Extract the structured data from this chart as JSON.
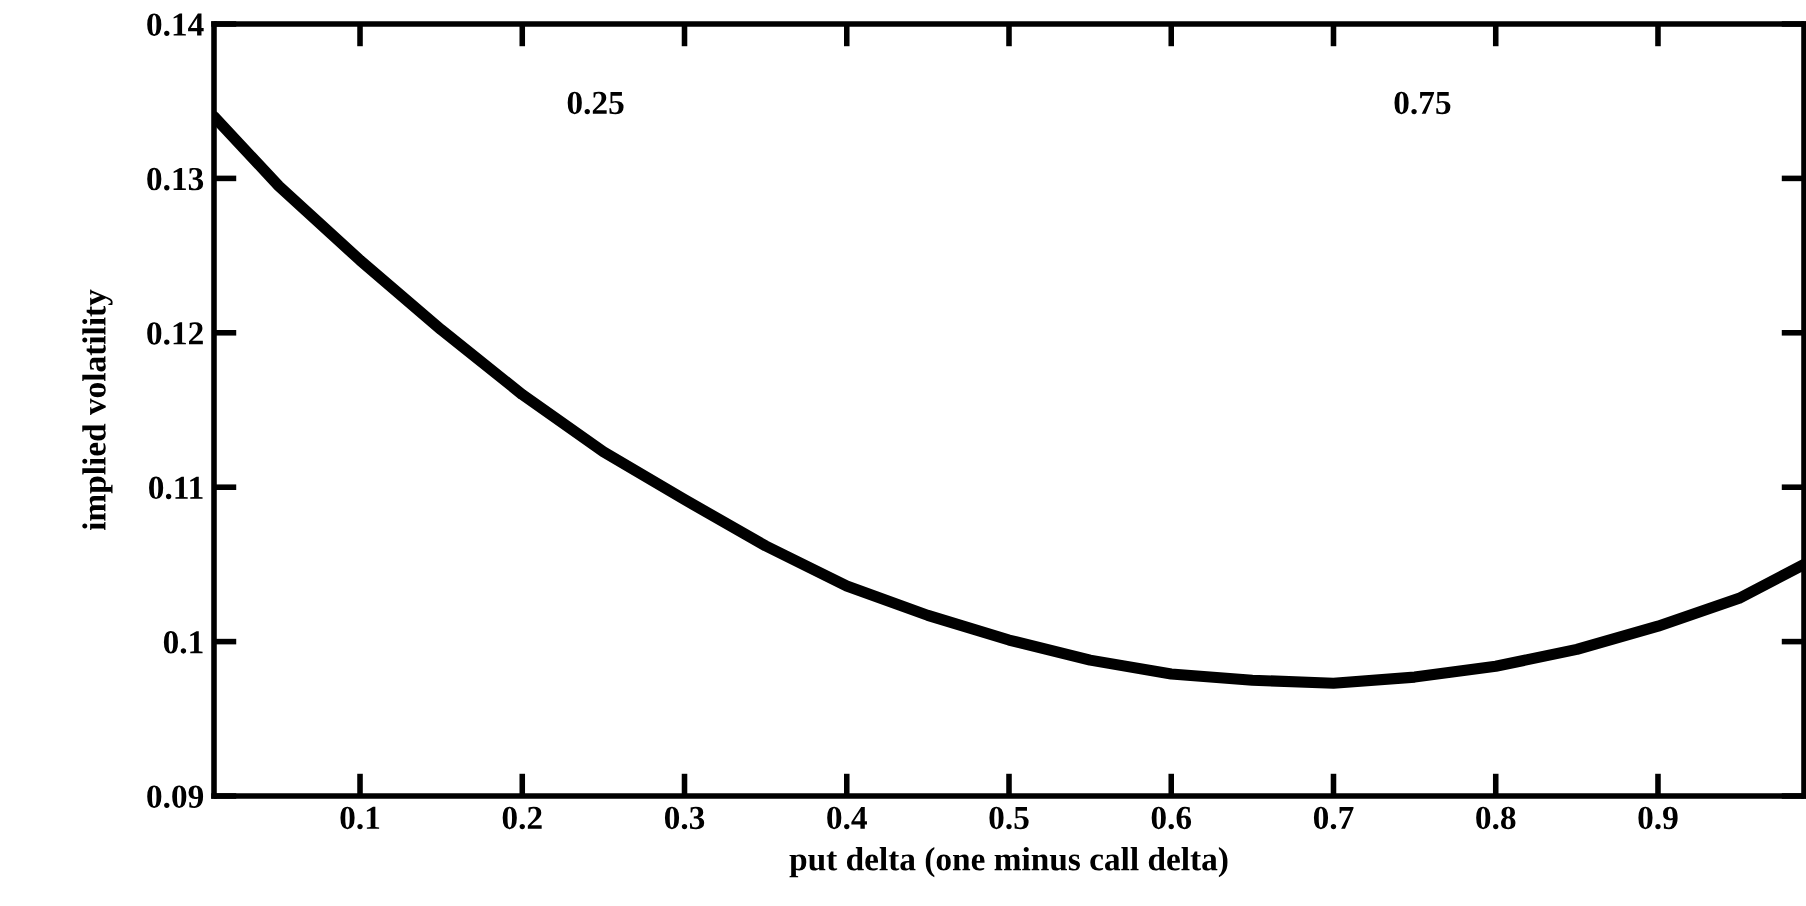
{
  "chart_data": {
    "type": "line",
    "xlabel": "put delta (one minus call delta)",
    "ylabel": "implied volatility",
    "x": [
      0.01,
      0.05,
      0.1,
      0.15,
      0.2,
      0.25,
      0.3,
      0.35,
      0.4,
      0.45,
      0.5,
      0.55,
      0.6,
      0.65,
      0.7,
      0.75,
      0.8,
      0.85,
      0.9,
      0.95,
      0.99
    ],
    "series": [
      {
        "color": "#000000",
        "values": [
          0.134,
          0.1295,
          0.1247,
          0.1202,
          0.116,
          0.1123,
          0.1092,
          0.1062,
          0.1036,
          0.1017,
          0.1001,
          0.0988,
          0.0979,
          0.0975,
          0.0973,
          0.0977,
          0.0984,
          0.0995,
          0.101,
          0.1028,
          0.105
        ]
      }
    ],
    "xlim": [
      0.01,
      0.99
    ],
    "ylim": [
      0.09,
      0.14
    ],
    "xticks": [
      0.1,
      0.2,
      0.3,
      0.4,
      0.5,
      0.6,
      0.7,
      0.8,
      0.9
    ],
    "yticks": [
      0.09,
      0.1,
      0.11,
      0.12,
      0.13,
      0.14
    ],
    "annotations": [
      "0.25",
      "0.75"
    ],
    "grid": false,
    "marker": "none",
    "line_style": "solid"
  }
}
